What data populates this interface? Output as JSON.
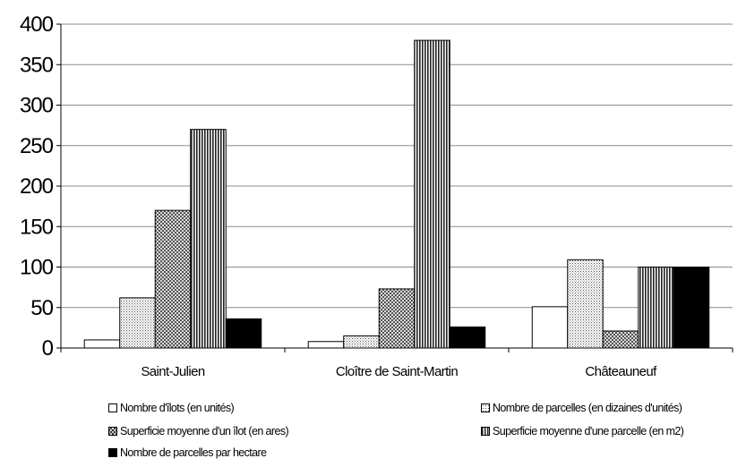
{
  "chart_data": {
    "type": "bar",
    "categories": [
      "Saint-Julien",
      "Cloître de Saint-Martin",
      "Châteauneuf"
    ],
    "series": [
      {
        "name": "Nombre d'îlots (en unités)",
        "values": [
          10,
          8,
          51
        ],
        "pattern": "white"
      },
      {
        "name": "Nombre de parcelles (en dizaines d'unités)",
        "values": [
          62,
          15,
          109
        ],
        "pattern": "dots"
      },
      {
        "name": "Superficie moyenne d'un îlot (en ares)",
        "values": [
          170,
          73,
          21
        ],
        "pattern": "crosshatch"
      },
      {
        "name": "Superficie moyenne d'une parcelle (en m2)",
        "values": [
          270,
          380,
          100
        ],
        "pattern": "vstripes"
      },
      {
        "name": "Nombre de parcelles par hectare",
        "values": [
          36,
          26,
          100
        ],
        "pattern": "black"
      }
    ],
    "y_ticks": [
      "0",
      "50",
      "100",
      "150",
      "200",
      "250",
      "300",
      "350",
      "400"
    ],
    "ylim": [
      0,
      400
    ],
    "grid": true,
    "legend_position": "bottom",
    "title": "",
    "xlabel": "",
    "ylabel": ""
  }
}
